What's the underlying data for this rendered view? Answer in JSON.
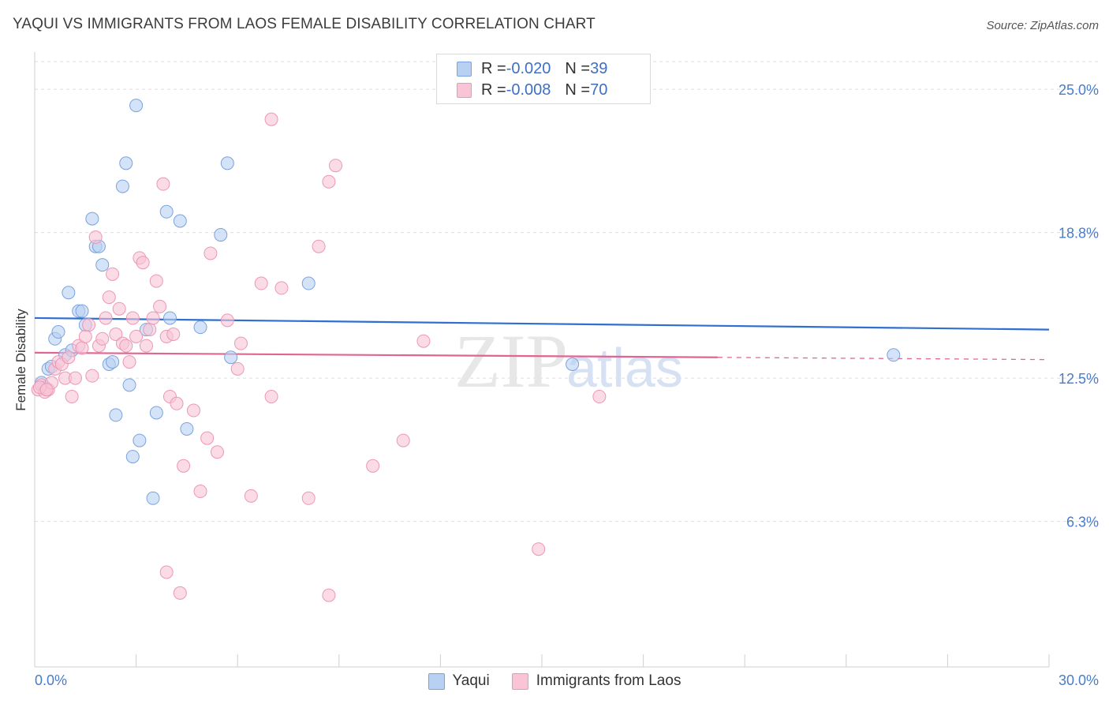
{
  "title": "YAQUI VS IMMIGRANTS FROM LAOS FEMALE DISABILITY CORRELATION CHART",
  "source": "Source: ZipAtlas.com",
  "watermark": {
    "zip": "ZIP",
    "atlas": "atlas"
  },
  "legend_stats": [
    {
      "r_label": "R = ",
      "r_value": "-0.020",
      "n_label": "N = ",
      "n_value": "39"
    },
    {
      "r_label": "R = ",
      "r_value": "-0.008",
      "n_label": "N = ",
      "n_value": "70"
    }
  ],
  "chart_data": {
    "type": "scatter",
    "title": "YAQUI VS IMMIGRANTS FROM LAOS FEMALE DISABILITY CORRELATION CHART",
    "xlabel": "",
    "ylabel": "Female Disability",
    "xlim": [
      0,
      30
    ],
    "ylim": [
      0,
      26.2
    ],
    "x_tick_labels": [
      "0.0%",
      "30.0%"
    ],
    "y_ticks": [
      6.3,
      12.5,
      18.8,
      25.0
    ],
    "y_tick_labels": [
      "6.3%",
      "12.5%",
      "18.8%",
      "25.0%"
    ],
    "grid": true,
    "legend_position": "top-center",
    "colors": {
      "yaqui_fill": "#b8d0f2",
      "yaqui_stroke": "#7aa3de",
      "yaqui_line": "#2f6fd0",
      "laos_fill": "#f8c4d6",
      "laos_stroke": "#ec97b4",
      "laos_line": "#e16592",
      "grid": "#dddddd",
      "axis_label": "#4a7cc9"
    },
    "series": [
      {
        "name": "Yaqui",
        "trend": {
          "x": [
            0,
            30
          ],
          "y": [
            15.1,
            14.6
          ],
          "dashed_from": null
        },
        "points": [
          [
            0.2,
            12.3
          ],
          [
            0.3,
            12.1
          ],
          [
            0.4,
            12.9
          ],
          [
            0.5,
            13.0
          ],
          [
            0.6,
            14.2
          ],
          [
            0.7,
            14.5
          ],
          [
            0.9,
            13.5
          ],
          [
            1.0,
            16.2
          ],
          [
            1.1,
            13.7
          ],
          [
            1.3,
            15.4
          ],
          [
            1.4,
            15.4
          ],
          [
            1.5,
            14.8
          ],
          [
            1.7,
            19.4
          ],
          [
            1.8,
            18.2
          ],
          [
            1.9,
            18.2
          ],
          [
            2.0,
            17.4
          ],
          [
            2.2,
            13.1
          ],
          [
            2.3,
            13.2
          ],
          [
            2.4,
            10.9
          ],
          [
            2.6,
            20.8
          ],
          [
            2.7,
            21.8
          ],
          [
            2.8,
            12.2
          ],
          [
            2.9,
            9.1
          ],
          [
            3.0,
            24.3
          ],
          [
            3.1,
            9.8
          ],
          [
            3.3,
            14.6
          ],
          [
            3.5,
            7.3
          ],
          [
            3.6,
            11.0
          ],
          [
            3.9,
            19.7
          ],
          [
            4.0,
            15.1
          ],
          [
            4.3,
            19.3
          ],
          [
            4.5,
            10.3
          ],
          [
            4.9,
            14.7
          ],
          [
            5.5,
            18.7
          ],
          [
            5.7,
            21.8
          ],
          [
            5.8,
            13.4
          ],
          [
            8.1,
            16.6
          ],
          [
            15.9,
            13.1
          ],
          [
            25.4,
            13.5
          ]
        ]
      },
      {
        "name": "Immigrants from Laos",
        "trend": {
          "x": [
            0,
            30
          ],
          "y": [
            13.6,
            13.3
          ],
          "dashed_from": 20.2
        },
        "points": [
          [
            0.1,
            12.0
          ],
          [
            0.2,
            12.2
          ],
          [
            0.3,
            11.9
          ],
          [
            0.4,
            12.0
          ],
          [
            0.5,
            12.3
          ],
          [
            0.6,
            12.9
          ],
          [
            0.7,
            13.2
          ],
          [
            0.8,
            13.1
          ],
          [
            0.9,
            12.5
          ],
          [
            1.0,
            13.4
          ],
          [
            1.1,
            11.7
          ],
          [
            1.2,
            12.5
          ],
          [
            1.3,
            13.9
          ],
          [
            1.4,
            13.8
          ],
          [
            1.5,
            14.3
          ],
          [
            1.6,
            14.8
          ],
          [
            1.7,
            12.6
          ],
          [
            1.8,
            18.6
          ],
          [
            1.9,
            13.9
          ],
          [
            2.0,
            14.2
          ],
          [
            2.1,
            15.1
          ],
          [
            2.2,
            16.0
          ],
          [
            2.3,
            17.0
          ],
          [
            2.4,
            14.4
          ],
          [
            2.5,
            15.5
          ],
          [
            2.6,
            14.0
          ],
          [
            2.7,
            13.9
          ],
          [
            2.8,
            13.2
          ],
          [
            2.9,
            15.1
          ],
          [
            3.0,
            14.3
          ],
          [
            3.1,
            17.7
          ],
          [
            3.2,
            17.5
          ],
          [
            3.3,
            13.9
          ],
          [
            3.4,
            14.6
          ],
          [
            3.5,
            15.1
          ],
          [
            3.6,
            16.7
          ],
          [
            3.7,
            15.6
          ],
          [
            3.8,
            20.9
          ],
          [
            3.9,
            14.3
          ],
          [
            4.0,
            11.7
          ],
          [
            3.9,
            4.1
          ],
          [
            4.1,
            14.4
          ],
          [
            4.2,
            11.4
          ],
          [
            4.3,
            3.2
          ],
          [
            4.4,
            8.7
          ],
          [
            4.7,
            11.1
          ],
          [
            4.9,
            7.6
          ],
          [
            5.1,
            9.9
          ],
          [
            5.2,
            17.9
          ],
          [
            5.4,
            9.3
          ],
          [
            5.7,
            15.0
          ],
          [
            6.0,
            12.9
          ],
          [
            6.1,
            14.0
          ],
          [
            6.4,
            7.4
          ],
          [
            6.7,
            16.6
          ],
          [
            7.0,
            11.7
          ],
          [
            7.0,
            23.7
          ],
          [
            7.3,
            16.4
          ],
          [
            8.1,
            7.3
          ],
          [
            8.4,
            18.2
          ],
          [
            8.7,
            3.1
          ],
          [
            8.7,
            21.0
          ],
          [
            8.9,
            21.7
          ],
          [
            10.0,
            8.7
          ],
          [
            10.9,
            9.8
          ],
          [
            11.5,
            14.1
          ],
          [
            14.9,
            5.1
          ],
          [
            16.7,
            11.7
          ],
          [
            0.15,
            12.1
          ],
          [
            0.35,
            12.0
          ]
        ]
      }
    ]
  }
}
